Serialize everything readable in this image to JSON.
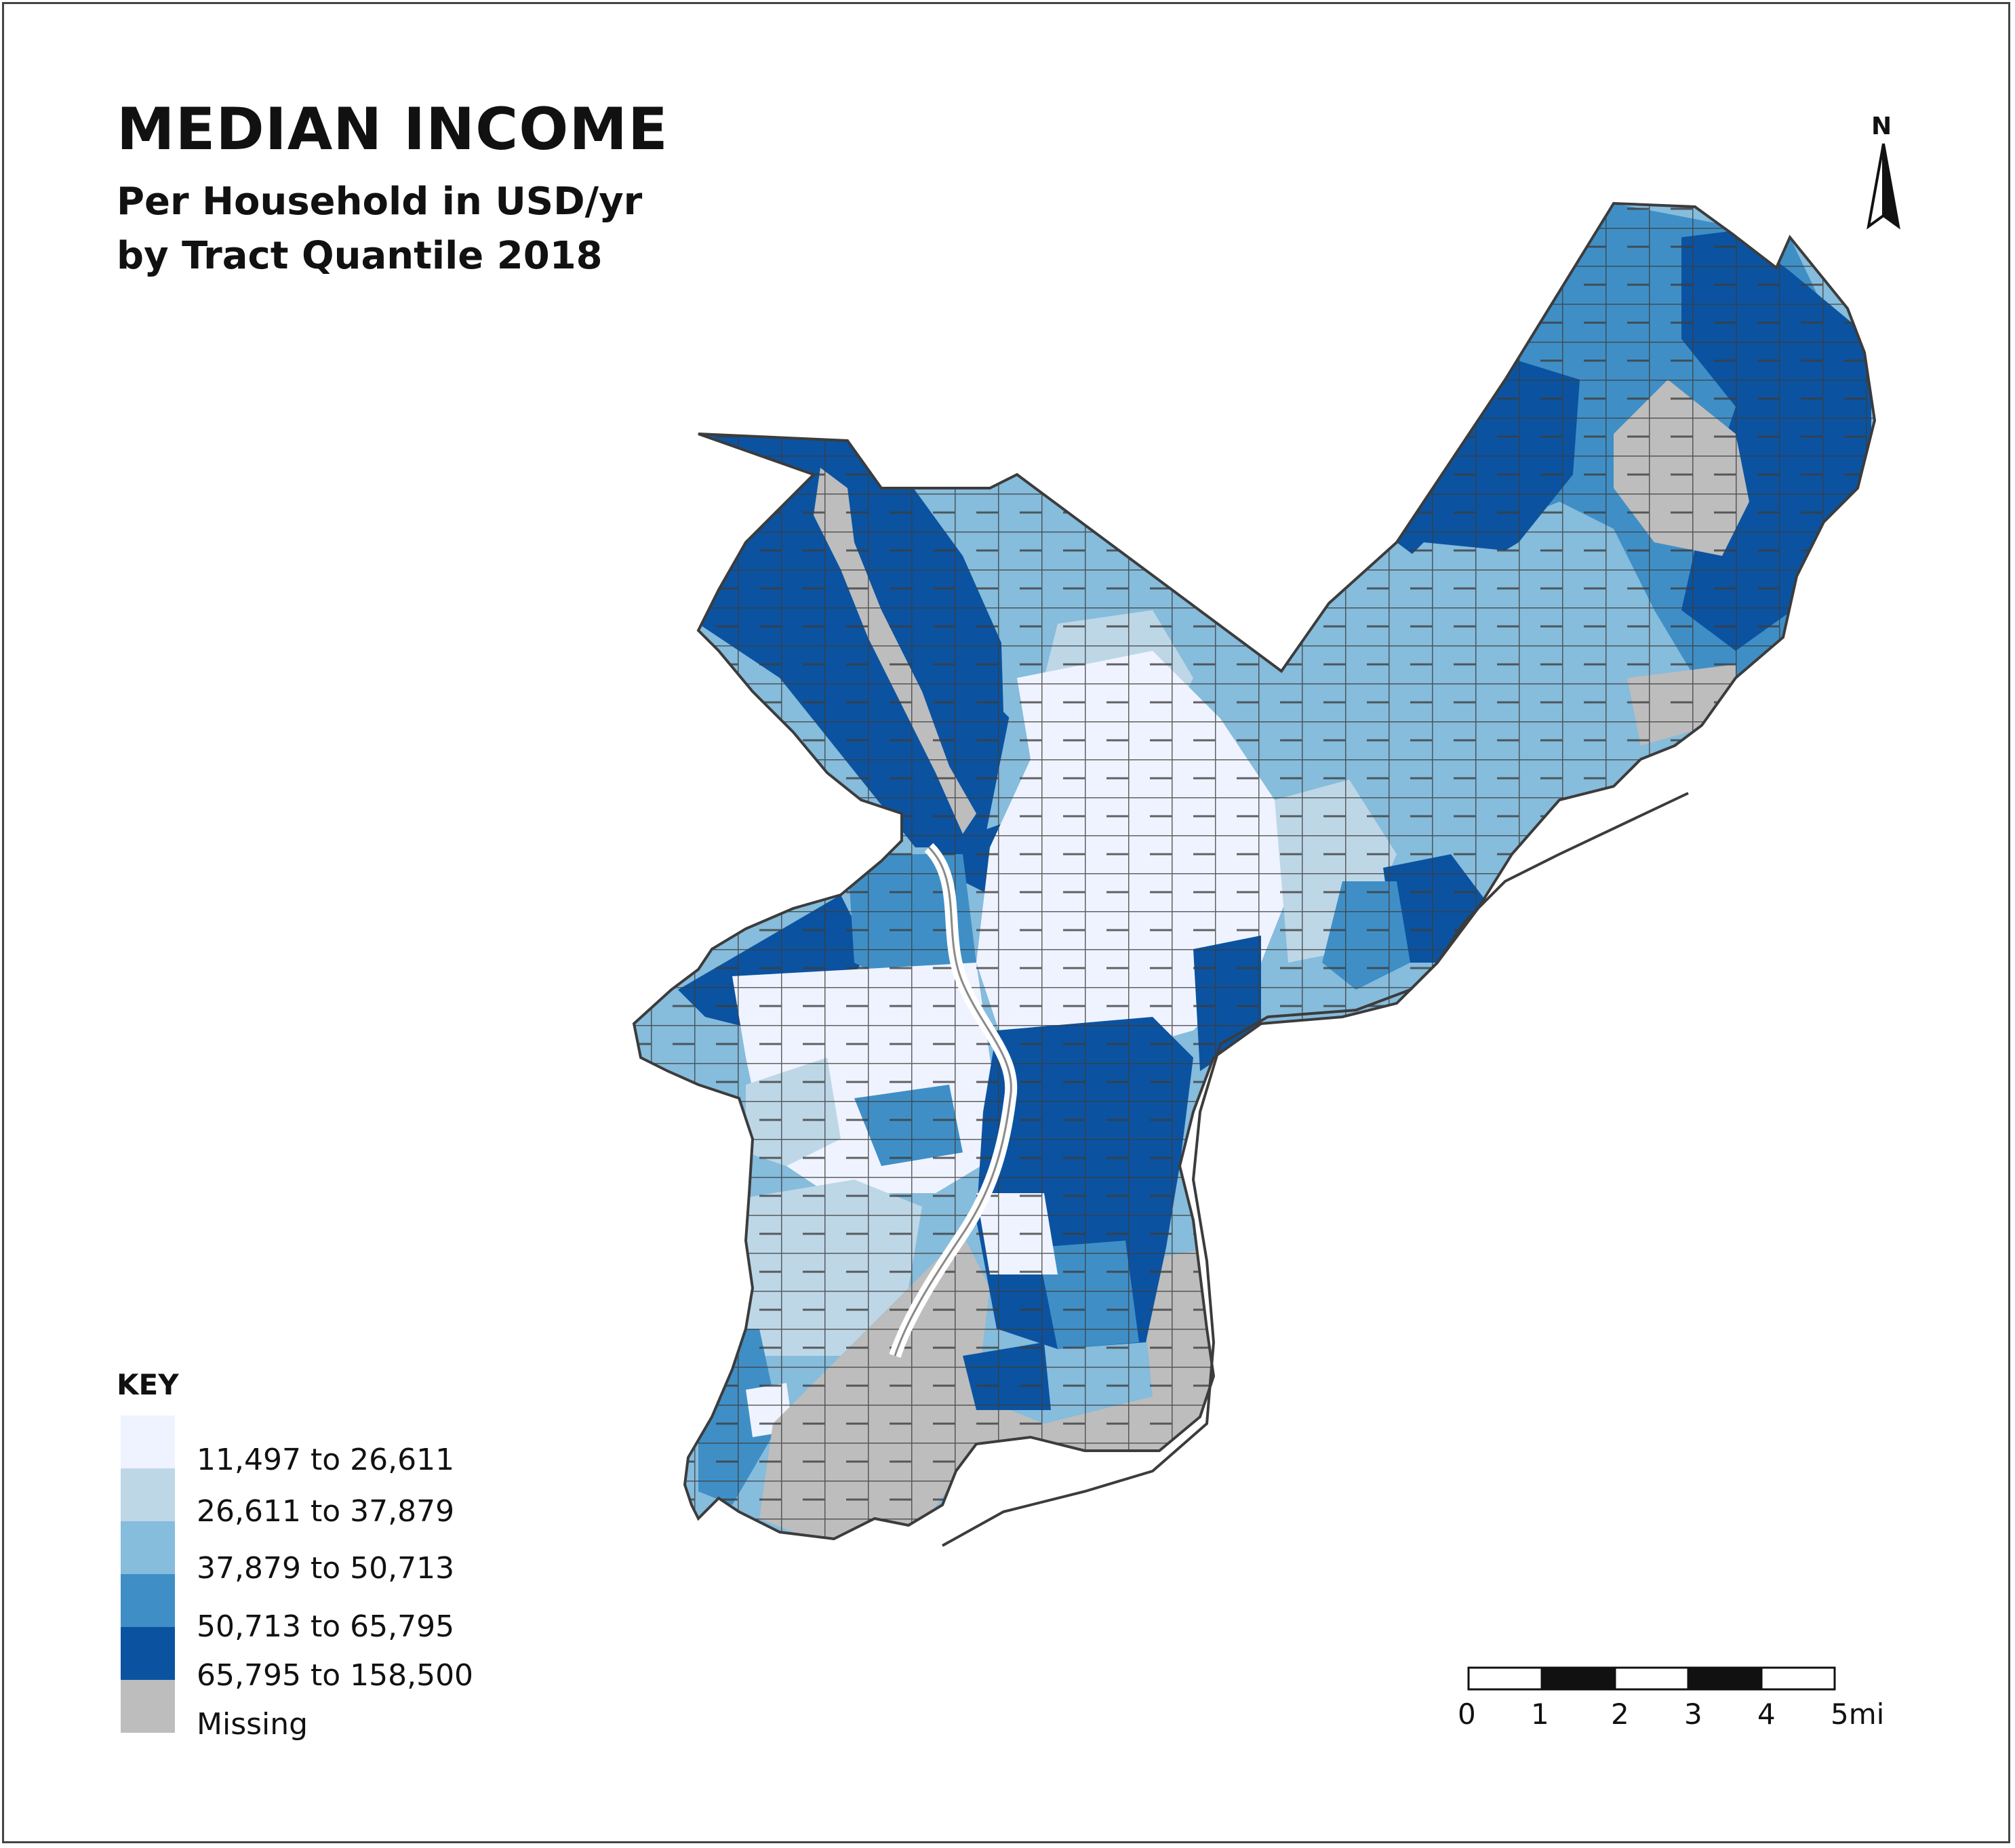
{
  "title": "MEDIAN INCOME",
  "subtitle_line1": "Per Household in USD/yr",
  "subtitle_line2": "by Tract Quantile 2018",
  "legend": {
    "heading": "KEY",
    "items": [
      {
        "label": "11,497 to 26,611",
        "color": "#eff3ff"
      },
      {
        "label": "26,611 to 37,879",
        "color": "#bdd7e7"
      },
      {
        "label": "37,879 to 50,713",
        "color": "#86bcdc"
      },
      {
        "label": "50,713 to 65,795",
        "color": "#3f8fc6"
      },
      {
        "label": "65,795 to 158,500",
        "color": "#0b53a1"
      },
      {
        "label": "Missing",
        "color": "#bdbdbd"
      }
    ]
  },
  "scale_bar": {
    "labels": [
      "0",
      "1",
      "2",
      "3",
      "4",
      "5mi"
    ]
  },
  "north_arrow": {
    "label": "N",
    "icon": "north-arrow-icon"
  },
  "colors": {
    "boundary": "#3c3c3c",
    "river": "#ffffff",
    "background": "#ffffff"
  }
}
